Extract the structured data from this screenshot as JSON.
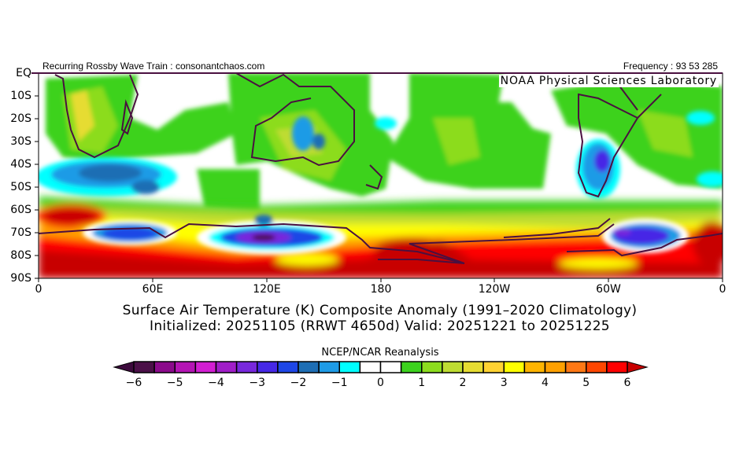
{
  "header": {
    "left_text": "Recurring Rossby Wave Train : consonantchaos.com",
    "right_text": "Frequency : 93 53 285",
    "lab_label": "NOAA Physical Sciences Laboratory"
  },
  "map": {
    "lat_labels": [
      "EQ",
      "10S",
      "20S",
      "30S",
      "40S",
      "50S",
      "60S",
      "70S",
      "80S",
      "90S"
    ],
    "lon_labels": [
      "0",
      "60E",
      "120E",
      "180",
      "120W",
      "60W",
      "0"
    ],
    "coastline_color": "#4a1040"
  },
  "title": {
    "line1": "Surface Air Temperature (K) Composite Anomaly (1991–2020 Climatology)",
    "line2": "Initialized: 20251105 (RRWT 4650d) Valid: 20251221 to 20251225"
  },
  "colorbar": {
    "title": "NCEP/NCAR Reanalysis",
    "tick_labels": [
      "−6",
      "−5",
      "−4",
      "−3",
      "−2",
      "−1",
      "0",
      "1",
      "2",
      "3",
      "4",
      "5",
      "6"
    ],
    "low_extend_color": "#3c0a3c",
    "high_extend_color": "#c80000",
    "colors": [
      "#4b1048",
      "#8b0a8b",
      "#b414b4",
      "#d21ed2",
      "#a01ec8",
      "#7828dc",
      "#4628e6",
      "#1e46e6",
      "#1e6eb4",
      "#1e9be6",
      "#00ffff",
      "#ffffff",
      "#ffffff",
      "#3cd21e",
      "#8cdc1e",
      "#bedc32",
      "#e6dc32",
      "#ffd232",
      "#ffff00",
      "#ffb400",
      "#ffa000",
      "#ff7814",
      "#ff4600",
      "#ff0000"
    ]
  }
}
